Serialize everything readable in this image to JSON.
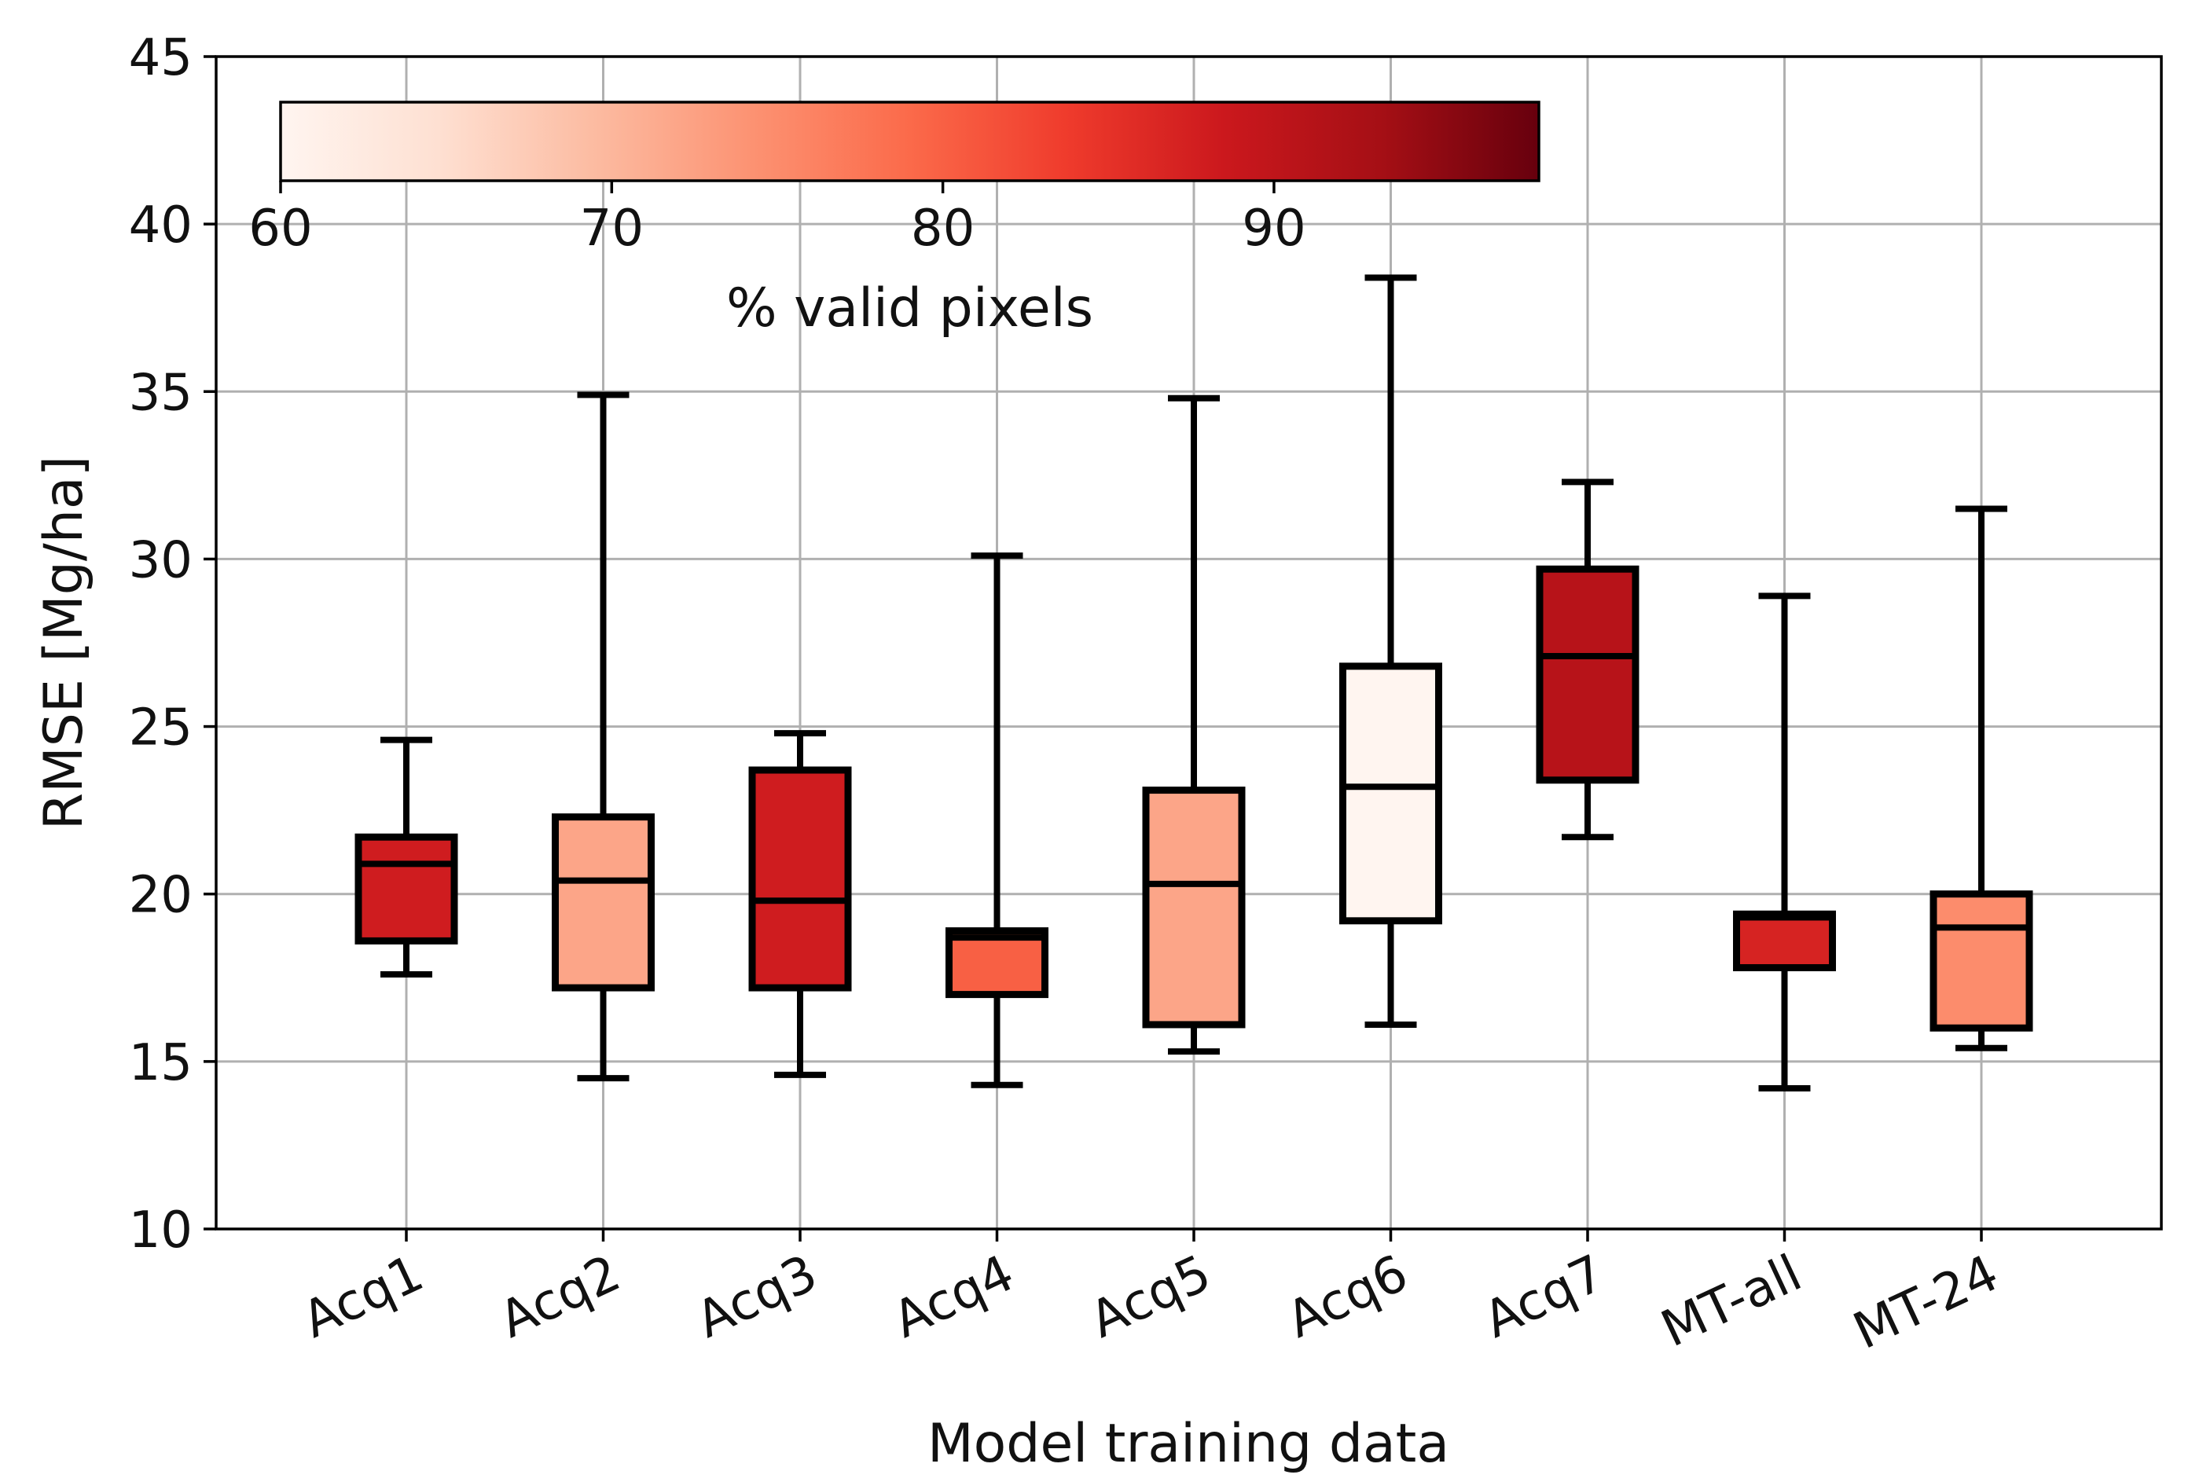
{
  "chart_data": {
    "type": "boxplot",
    "title": "",
    "xlabel": "Model training data",
    "ylabel": "RMSE [Mg/ha]",
    "ylim": [
      10,
      45
    ],
    "yticks": [
      10,
      15,
      20,
      25,
      30,
      35,
      40,
      45
    ],
    "grid": true,
    "categories": [
      "Acq1",
      "Acq2",
      "Acq3",
      "Acq4",
      "Acq5",
      "Acq6",
      "Acq7",
      "MT-all",
      "MT-24"
    ],
    "boxes": [
      {
        "label": "Acq1",
        "whisker_low": 17.6,
        "q1": 18.6,
        "median": 20.9,
        "q3": 21.7,
        "whisker_high": 24.6,
        "valid_pixels_pct": 88
      },
      {
        "label": "Acq2",
        "whisker_low": 14.5,
        "q1": 17.2,
        "median": 20.4,
        "q3": 22.3,
        "whisker_high": 34.9,
        "valid_pixels_pct": 72
      },
      {
        "label": "Acq3",
        "whisker_low": 14.6,
        "q1": 17.2,
        "median": 19.8,
        "q3": 23.7,
        "whisker_high": 24.8,
        "valid_pixels_pct": 88
      },
      {
        "label": "Acq4",
        "whisker_low": 14.3,
        "q1": 17.0,
        "median": 18.7,
        "q3": 18.9,
        "whisker_high": 30.1,
        "valid_pixels_pct": 80
      },
      {
        "label": "Acq5",
        "whisker_low": 15.3,
        "q1": 16.1,
        "median": 20.3,
        "q3": 23.1,
        "whisker_high": 34.8,
        "valid_pixels_pct": 72
      },
      {
        "label": "Acq6",
        "whisker_low": 16.1,
        "q1": 19.2,
        "median": 23.2,
        "q3": 26.8,
        "whisker_high": 38.4,
        "valid_pixels_pct": 60
      },
      {
        "label": "Acq7",
        "whisker_low": 21.7,
        "q1": 23.4,
        "median": 27.1,
        "q3": 29.7,
        "whisker_high": 32.3,
        "valid_pixels_pct": 91
      },
      {
        "label": "MT-all",
        "whisker_low": 14.2,
        "q1": 17.8,
        "median": 19.3,
        "q3": 19.4,
        "whisker_high": 28.9,
        "valid_pixels_pct": 87
      },
      {
        "label": "MT-24",
        "whisker_low": 15.4,
        "q1": 16.0,
        "median": 19.0,
        "q3": 20.0,
        "whisker_high": 31.5,
        "valid_pixels_pct": 75
      }
    ],
    "colorbar": {
      "title": "% valid pixels",
      "min": 60,
      "max": 98,
      "ticks": [
        60,
        70,
        80,
        90
      ],
      "colormap": "Reds",
      "stops": [
        "#fff5f0",
        "#fee0d2",
        "#fcbba1",
        "#fc9272",
        "#fb6a4a",
        "#ef3b2c",
        "#cb181d",
        "#a50f15",
        "#67000d"
      ]
    }
  }
}
